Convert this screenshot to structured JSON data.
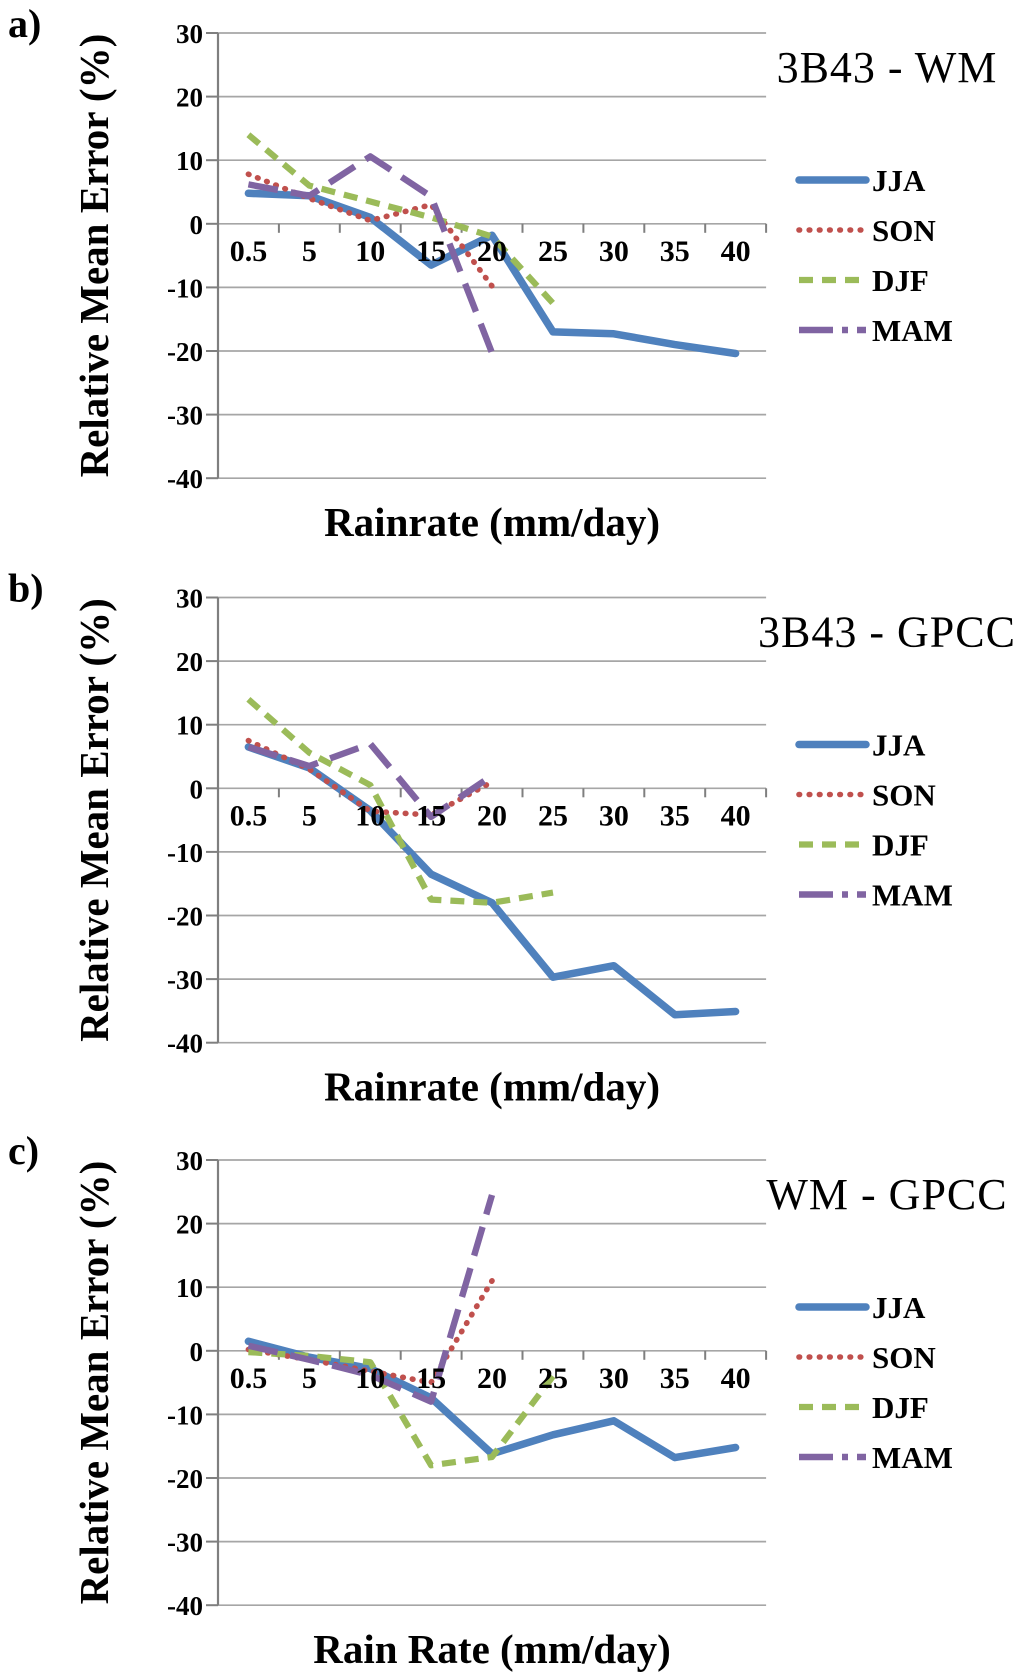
{
  "colors": {
    "jja": "#4F81BD",
    "son": "#C0504D",
    "djf": "#9BBB59",
    "mam": "#8064A2",
    "gridline": "#A6A6A6",
    "axis": "#7F7F7F",
    "text": "#000000"
  },
  "y_axis": {
    "label": "Relative Mean Error (%)",
    "ticks": [
      "30",
      "20",
      "10",
      "0",
      "-10",
      "-20",
      "-30",
      "-40"
    ]
  },
  "panels": [
    {
      "letter": "a)"
    },
    {
      "letter": "b)"
    },
    {
      "letter": "c)"
    }
  ],
  "chart_data": [
    {
      "type": "line",
      "title": "3B43 - WM",
      "xlabel": "Rainrate (mm/day)",
      "ylabel": "Relative Mean Error (%)",
      "ylim": [
        -40,
        30
      ],
      "ytick_step": 10,
      "grid": true,
      "legend_position": "right",
      "categories": [
        "0.5",
        "5",
        "10",
        "15",
        "20",
        "25",
        "30",
        "35",
        "40"
      ],
      "series": [
        {
          "name": "JJA",
          "style": "solid",
          "values": [
            4.8,
            4.4,
            1,
            -6.5,
            -1.8,
            -17,
            -17.3,
            -19,
            -20.4
          ]
        },
        {
          "name": "SON",
          "style": "dotted",
          "values": [
            7.8,
            4,
            0.5,
            3,
            -9.8,
            null,
            null,
            null,
            null
          ]
        },
        {
          "name": "DJF",
          "style": "dashed",
          "values": [
            14,
            6,
            3.5,
            1,
            -2,
            -12.5,
            null,
            null,
            null
          ]
        },
        {
          "name": "MAM",
          "style": "long-dash",
          "values": [
            6.2,
            4.4,
            10.6,
            4.3,
            -20.3,
            null,
            null,
            null,
            null
          ]
        }
      ]
    },
    {
      "type": "line",
      "title": "3B43 - GPCC",
      "xlabel": "Rainrate (mm/day)",
      "ylabel": "Relative Mean Error (%)",
      "ylim": [
        -40,
        30
      ],
      "ytick_step": 10,
      "grid": true,
      "legend_position": "right",
      "categories": [
        "0.5",
        "5",
        "10",
        "15",
        "20",
        "25",
        "30",
        "35",
        "40"
      ],
      "series": [
        {
          "name": "JJA",
          "style": "solid",
          "values": [
            6.5,
            3.2,
            -3.5,
            -13.5,
            -18,
            -29.7,
            -27.9,
            -35.6,
            -35.1
          ]
        },
        {
          "name": "SON",
          "style": "dotted",
          "values": [
            7.5,
            3,
            -3.6,
            -4.2,
            1,
            null,
            null,
            null,
            null
          ]
        },
        {
          "name": "DJF",
          "style": "dashed",
          "values": [
            14,
            5.6,
            0.5,
            -17.5,
            -18,
            -16.4,
            null,
            null,
            null
          ]
        },
        {
          "name": "MAM",
          "style": "long-dash",
          "values": [
            6.5,
            3.5,
            7,
            -4.5,
            2,
            null,
            null,
            null,
            null
          ]
        }
      ]
    },
    {
      "type": "line",
      "title": "WM - GPCC",
      "xlabel": "Rain Rate (mm/day)",
      "ylabel": "Relative Mean Error (%)",
      "ylim": [
        -40,
        30
      ],
      "ytick_step": 10,
      "grid": true,
      "legend_position": "right",
      "categories": [
        "0.5",
        "5",
        "10",
        "15",
        "20",
        "25",
        "30",
        "35",
        "40"
      ],
      "series": [
        {
          "name": "JJA",
          "style": "solid",
          "values": [
            1.5,
            -1,
            -2.8,
            -7.4,
            -16.2,
            -13.2,
            -11,
            -16.8,
            -15.2
          ]
        },
        {
          "name": "SON",
          "style": "dotted",
          "values": [
            0.2,
            -1.4,
            -3.2,
            -5,
            11,
            null,
            null,
            null,
            null
          ]
        },
        {
          "name": "DJF",
          "style": "dashed",
          "values": [
            -0.2,
            -0.8,
            -1.8,
            -18,
            -16.7,
            -4,
            null,
            null,
            null
          ]
        },
        {
          "name": "MAM",
          "style": "long-dash",
          "values": [
            0.8,
            -1.4,
            -3.8,
            -8,
            24.5,
            null,
            null,
            null,
            null
          ]
        }
      ]
    }
  ]
}
